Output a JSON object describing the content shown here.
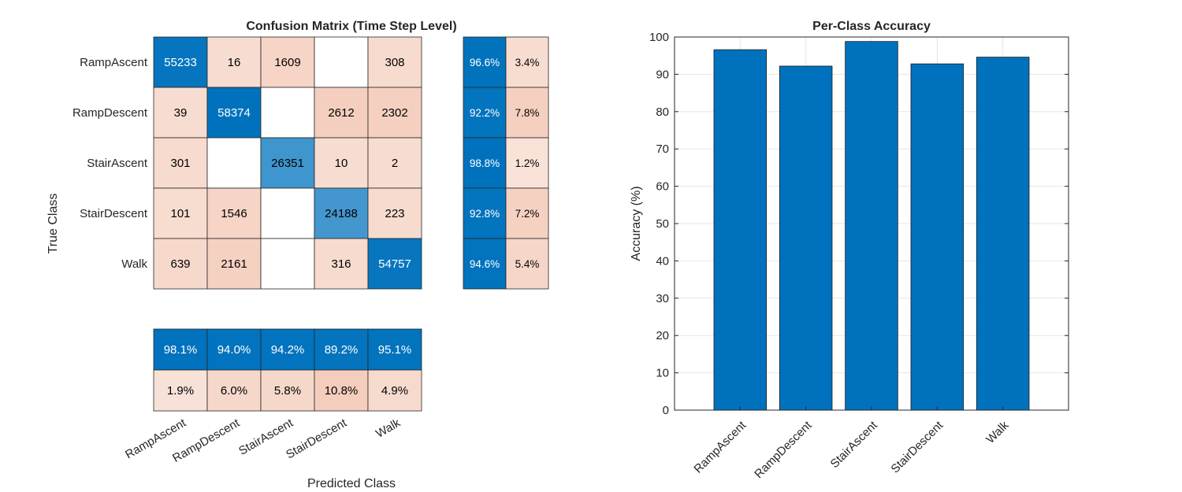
{
  "chart_data": [
    {
      "type": "heatmap",
      "title": "Confusion Matrix (Time Step Level)",
      "xlabel": "Predicted Class",
      "ylabel": "True Class",
      "classes": [
        "RampAscent",
        "RampDescent",
        "StairAscent",
        "StairDescent",
        "Walk"
      ],
      "matrix": [
        [
          55233,
          16,
          1609,
          "",
          308
        ],
        [
          39,
          58374,
          "",
          2612,
          2302
        ],
        [
          301,
          "",
          26351,
          10,
          2
        ],
        [
          101,
          1546,
          "",
          24188,
          223
        ],
        [
          639,
          2161,
          "",
          316,
          54757
        ]
      ],
      "row_summary": {
        "correct": [
          "96.6%",
          "92.2%",
          "98.8%",
          "92.8%",
          "94.6%"
        ],
        "incorrect": [
          "3.4%",
          "7.8%",
          "1.2%",
          "7.2%",
          "5.4%"
        ]
      },
      "column_summary": {
        "correct": [
          "98.1%",
          "94.0%",
          "94.2%",
          "89.2%",
          "95.1%"
        ],
        "incorrect": [
          "1.9%",
          "6.0%",
          "5.8%",
          "10.8%",
          "4.9%"
        ]
      },
      "colors": {
        "diagonal": "#0072BD",
        "off_diagonal": "#D95319",
        "text_dark": "#000000",
        "text_light": "#ffffff"
      }
    },
    {
      "type": "bar",
      "title": "Per-Class Accuracy",
      "xlabel": "",
      "ylabel": "Accuracy (%)",
      "categories": [
        "RampAscent",
        "RampDescent",
        "StairAscent",
        "StairDescent",
        "Walk"
      ],
      "values": [
        96.6,
        92.2,
        98.8,
        92.8,
        94.6
      ],
      "ylim": [
        0,
        100
      ],
      "yticks": [
        0,
        10,
        20,
        30,
        40,
        50,
        60,
        70,
        80,
        90,
        100
      ],
      "grid": true,
      "bar_color": "#0072BD"
    }
  ]
}
